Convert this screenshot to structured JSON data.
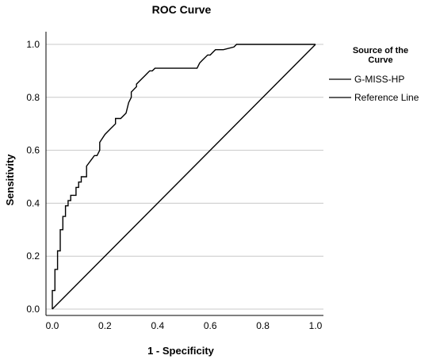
{
  "chart_data": {
    "type": "line",
    "title": "ROC Curve",
    "xlabel": "1 - Specificity",
    "ylabel": "Sensitivity",
    "xlim": [
      0.0,
      1.0
    ],
    "ylim": [
      0.0,
      1.0
    ],
    "xticks": [
      "0.0",
      "0.2",
      "0.4",
      "0.6",
      "0.8",
      "1.0"
    ],
    "yticks": [
      "0.0",
      "0.2",
      "0.4",
      "0.6",
      "0.8",
      "1.0"
    ],
    "grid": "horizontal",
    "legend": {
      "title_lines": [
        "Source of the",
        "Curve"
      ],
      "placement": "right"
    },
    "series": [
      {
        "name": "G-MISS-HP",
        "color": "#000000",
        "step": true,
        "x": [
          0.0,
          0.0,
          0.01,
          0.01,
          0.02,
          0.02,
          0.03,
          0.03,
          0.04,
          0.04,
          0.05,
          0.05,
          0.06,
          0.06,
          0.07,
          0.07,
          0.09,
          0.09,
          0.1,
          0.1,
          0.11,
          0.11,
          0.13,
          0.13,
          0.16,
          0.17,
          0.18,
          0.18,
          0.2,
          0.2,
          0.22,
          0.24,
          0.24,
          0.26,
          0.28,
          0.29,
          0.3,
          0.3,
          0.32,
          0.32,
          0.34,
          0.35,
          0.36,
          0.37,
          0.38,
          0.39,
          0.4,
          0.4,
          0.45,
          0.55,
          0.56,
          0.57,
          0.59,
          0.6,
          0.61,
          0.62,
          0.65,
          0.69,
          0.7,
          1.0
        ],
        "y": [
          0.0,
          0.07,
          0.07,
          0.15,
          0.15,
          0.22,
          0.22,
          0.3,
          0.3,
          0.35,
          0.35,
          0.39,
          0.39,
          0.41,
          0.41,
          0.43,
          0.43,
          0.46,
          0.46,
          0.48,
          0.48,
          0.5,
          0.5,
          0.54,
          0.58,
          0.58,
          0.6,
          0.63,
          0.66,
          0.66,
          0.68,
          0.7,
          0.72,
          0.72,
          0.74,
          0.78,
          0.8,
          0.82,
          0.84,
          0.85,
          0.87,
          0.88,
          0.89,
          0.9,
          0.9,
          0.91,
          0.91,
          0.91,
          0.91,
          0.91,
          0.93,
          0.94,
          0.96,
          0.96,
          0.97,
          0.98,
          0.98,
          0.99,
          1.0,
          1.0
        ]
      },
      {
        "name": "Reference Line",
        "color": "#000000",
        "step": false,
        "x": [
          0.0,
          1.0
        ],
        "y": [
          0.0,
          1.0
        ]
      }
    ]
  }
}
